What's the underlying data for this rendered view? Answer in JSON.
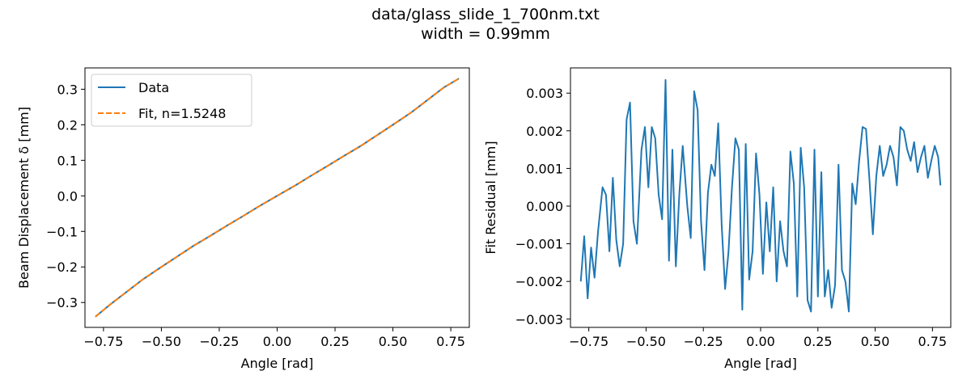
{
  "figure": {
    "title_line1": "data/glass_slide_1_700nm.txt",
    "title_line2": "width = 0.99mm"
  },
  "colors": {
    "data_line": "#1f77b4",
    "fit_line": "#ff7f0e",
    "axes": "#000000",
    "legend_border": "#cccccc"
  },
  "chart_data": [
    {
      "type": "line",
      "xlabel": "Angle [rad]",
      "ylabel": "Beam Displacement δ [mm]",
      "xlim": [
        -0.83,
        0.83
      ],
      "ylim": [
        -0.37,
        0.36
      ],
      "xticks": [
        -0.75,
        -0.5,
        -0.25,
        0.0,
        0.25,
        0.5,
        0.75
      ],
      "xtick_labels": [
        "−0.75",
        "−0.50",
        "−0.25",
        "0.00",
        "0.25",
        "0.50",
        "0.75"
      ],
      "yticks": [
        -0.3,
        -0.2,
        -0.1,
        0.0,
        0.1,
        0.2,
        0.3
      ],
      "ytick_labels": [
        "−0.3",
        "−0.2",
        "−0.1",
        "0.0",
        "0.1",
        "0.2",
        "0.3"
      ],
      "grid": false,
      "legend": "upper left",
      "series": [
        {
          "name": "Data",
          "style": "solid",
          "x": [
            -0.785,
            -0.72,
            -0.65,
            -0.58,
            -0.5,
            -0.43,
            -0.36,
            -0.29,
            -0.22,
            -0.15,
            -0.08,
            0.0,
            0.08,
            0.15,
            0.22,
            0.29,
            0.36,
            0.43,
            0.5,
            0.58,
            0.65,
            0.72,
            0.785
          ],
          "y": [
            -0.34,
            -0.305,
            -0.27,
            -0.235,
            -0.2,
            -0.17,
            -0.14,
            -0.113,
            -0.085,
            -0.058,
            -0.03,
            0.0,
            0.03,
            0.058,
            0.085,
            0.113,
            0.14,
            0.17,
            0.2,
            0.235,
            0.27,
            0.305,
            0.33
          ]
        },
        {
          "name": "Fit, n=1.5248",
          "style": "dashed",
          "x": [
            -0.785,
            -0.72,
            -0.65,
            -0.58,
            -0.5,
            -0.43,
            -0.36,
            -0.29,
            -0.22,
            -0.15,
            -0.08,
            0.0,
            0.08,
            0.15,
            0.22,
            0.29,
            0.36,
            0.43,
            0.5,
            0.58,
            0.65,
            0.72,
            0.785
          ],
          "y": [
            -0.34,
            -0.305,
            -0.27,
            -0.235,
            -0.2,
            -0.17,
            -0.14,
            -0.113,
            -0.085,
            -0.058,
            -0.03,
            0.0,
            0.03,
            0.058,
            0.085,
            0.113,
            0.14,
            0.17,
            0.2,
            0.235,
            0.27,
            0.305,
            0.33
          ]
        }
      ]
    },
    {
      "type": "line",
      "xlabel": "Angle [rad]",
      "ylabel": "Fit Residual [mm]",
      "xlim": [
        -0.83,
        0.83
      ],
      "ylim": [
        -0.00322,
        0.00367
      ],
      "xticks": [
        -0.75,
        -0.5,
        -0.25,
        0.0,
        0.25,
        0.5,
        0.75
      ],
      "xtick_labels": [
        "−0.75",
        "−0.50",
        "−0.25",
        "0.00",
        "0.25",
        "0.50",
        "0.75"
      ],
      "yticks": [
        -0.003,
        -0.002,
        -0.001,
        0.0,
        0.001,
        0.002,
        0.003
      ],
      "ytick_labels": [
        "−0.003",
        "−0.002",
        "−0.001",
        "0.000",
        "0.001",
        "0.002",
        "0.003"
      ],
      "grid": false,
      "series": [
        {
          "style": "solid",
          "x": [
            -0.785,
            -0.77,
            -0.755,
            -0.74,
            -0.725,
            -0.71,
            -0.69,
            -0.675,
            -0.66,
            -0.645,
            -0.63,
            -0.615,
            -0.6,
            -0.585,
            -0.57,
            -0.555,
            -0.54,
            -0.52,
            -0.505,
            -0.49,
            -0.475,
            -0.46,
            -0.445,
            -0.43,
            -0.415,
            -0.4,
            -0.385,
            -0.37,
            -0.355,
            -0.34,
            -0.32,
            -0.305,
            -0.29,
            -0.275,
            -0.26,
            -0.245,
            -0.23,
            -0.215,
            -0.2,
            -0.185,
            -0.17,
            -0.155,
            -0.14,
            -0.125,
            -0.11,
            -0.095,
            -0.08,
            -0.065,
            -0.05,
            -0.035,
            -0.02,
            -0.005,
            0.01,
            0.025,
            0.04,
            0.055,
            0.07,
            0.085,
            0.1,
            0.115,
            0.13,
            0.145,
            0.16,
            0.175,
            0.19,
            0.205,
            0.22,
            0.235,
            0.25,
            0.265,
            0.28,
            0.295,
            0.31,
            0.325,
            0.34,
            0.355,
            0.37,
            0.385,
            0.4,
            0.415,
            0.43,
            0.445,
            0.46,
            0.475,
            0.49,
            0.505,
            0.52,
            0.535,
            0.55,
            0.565,
            0.58,
            0.595,
            0.61,
            0.625,
            0.64,
            0.655,
            0.67,
            0.685,
            0.7,
            0.715,
            0.73,
            0.745,
            0.76,
            0.775,
            0.785
          ],
          "y": [
            -0.002,
            -0.0008,
            -0.00245,
            -0.0011,
            -0.0019,
            -0.0007,
            0.0005,
            0.0003,
            -0.0012,
            0.00075,
            -0.0009,
            -0.0016,
            -0.001,
            0.0023,
            0.00275,
            -0.0004,
            -0.001,
            0.0015,
            0.0021,
            0.0005,
            0.0021,
            0.0018,
            0.0003,
            -0.00035,
            0.00335,
            -0.00145,
            0.0015,
            -0.0016,
            0.0003,
            0.0016,
            0.0,
            -0.00085,
            0.00305,
            0.00255,
            -0.0004,
            -0.0017,
            0.00035,
            0.0011,
            0.0008,
            0.0022,
            -0.0005,
            -0.0022,
            -0.0012,
            0.0005,
            0.0018,
            0.0015,
            -0.00275,
            0.00165,
            -0.00195,
            -0.0012,
            0.0014,
            0.0003,
            -0.0018,
            0.0001,
            -0.0012,
            0.0005,
            -0.002,
            -0.0004,
            -0.0012,
            -0.0016,
            0.00145,
            0.0006,
            -0.0024,
            0.00155,
            0.0005,
            -0.0025,
            -0.0028,
            0.0015,
            -0.0024,
            0.0009,
            -0.0024,
            -0.0017,
            -0.0027,
            -0.0021,
            0.0011,
            -0.0017,
            -0.002,
            -0.0028,
            0.0006,
            5e-05,
            0.0012,
            0.0021,
            0.00205,
            0.0007,
            -0.00075,
            0.0008,
            0.0016,
            0.0008,
            0.0011,
            0.0016,
            0.0013,
            0.00055,
            0.0021,
            0.002,
            0.0015,
            0.0012,
            0.0017,
            0.0009,
            0.0013,
            0.0016,
            0.00075,
            0.0012,
            0.0016,
            0.0013,
            0.00055
          ]
        }
      ]
    }
  ]
}
